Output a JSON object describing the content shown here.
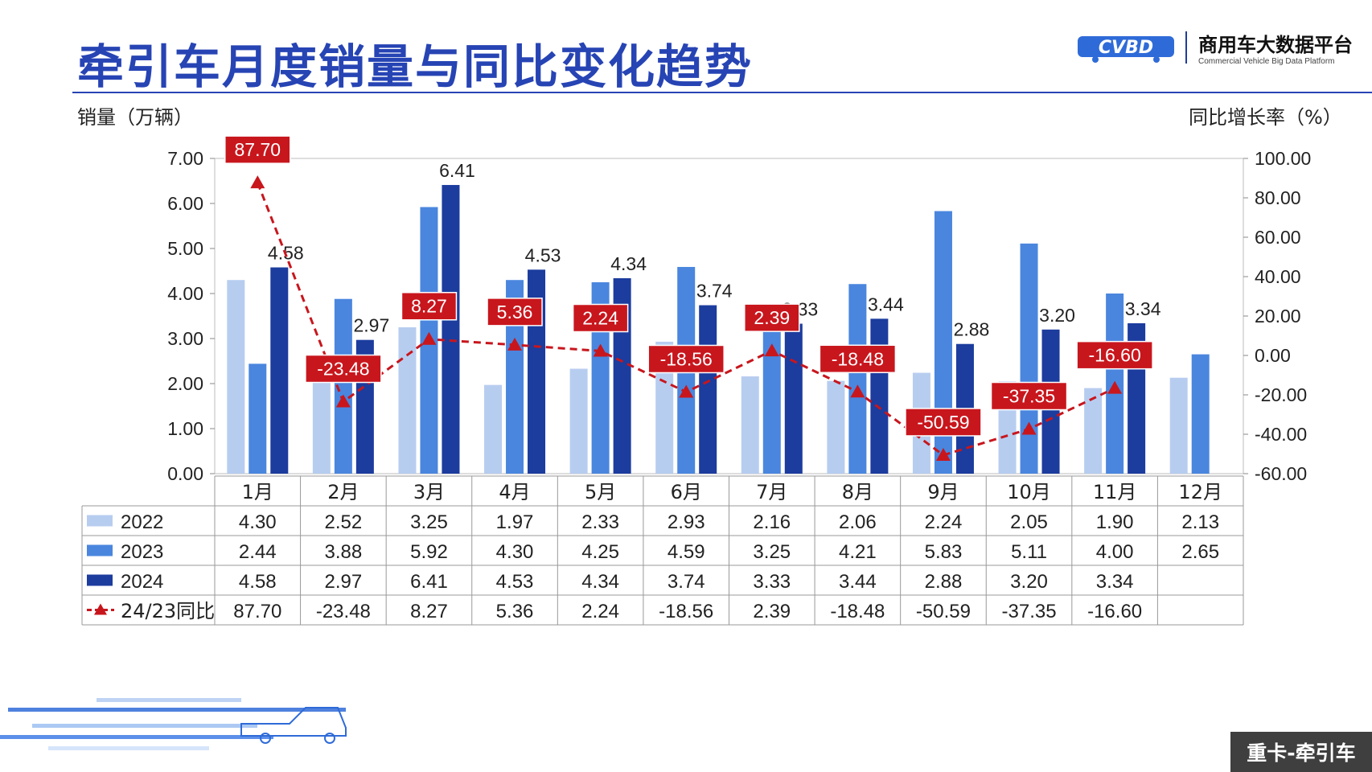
{
  "page": {
    "title": "牵引车月度销量与同比变化趋势",
    "brand_name": "商用车大数据平台",
    "brand_sub": "Commercial Vehicle Big Data Platform",
    "brand_logo": "CVBD",
    "footer_tag": "重卡-牵引车"
  },
  "colors": {
    "c2022": "#b7cdf0",
    "c2023": "#4a86de",
    "c2024": "#1c3c9e",
    "yoy": "#c8161d",
    "title": "#2744b4"
  },
  "chart_data": {
    "type": "bar",
    "ylabel": "销量（万辆）",
    "y2label": "同比增长率（%）",
    "ylim": [
      0,
      7
    ],
    "y2lim": [
      -60,
      100
    ],
    "yticks": [
      "7.00",
      "6.00",
      "5.00",
      "4.00",
      "3.00",
      "2.00",
      "1.00",
      "0.00"
    ],
    "y2ticks": [
      "100.00",
      "80.00",
      "60.00",
      "40.00",
      "20.00",
      "0.00",
      "-20.00",
      "-40.00",
      "-60.00"
    ],
    "categories": [
      "1月",
      "2月",
      "3月",
      "4月",
      "5月",
      "6月",
      "7月",
      "8月",
      "9月",
      "10月",
      "11月",
      "12月"
    ],
    "series": [
      {
        "name": "2022",
        "values": [
          4.3,
          2.52,
          3.25,
          1.97,
          2.33,
          2.93,
          2.16,
          2.06,
          2.24,
          2.05,
          1.9,
          2.13
        ],
        "labels": [
          "4.30",
          "2.52",
          "3.25",
          "1.97",
          "2.33",
          "2.93",
          "2.16",
          "2.06",
          "2.24",
          "2.05",
          "1.90",
          "2.13"
        ]
      },
      {
        "name": "2023",
        "values": [
          2.44,
          3.88,
          5.92,
          4.3,
          4.25,
          4.59,
          3.25,
          4.21,
          5.83,
          5.11,
          4.0,
          2.65
        ],
        "labels": [
          "2.44",
          "3.88",
          "5.92",
          "4.30",
          "4.25",
          "4.59",
          "3.25",
          "4.21",
          "5.83",
          "5.11",
          "4.00",
          "2.65"
        ]
      },
      {
        "name": "2024",
        "values": [
          4.58,
          2.97,
          6.41,
          4.53,
          4.34,
          3.74,
          3.33,
          3.44,
          2.88,
          3.2,
          3.34,
          null
        ],
        "labels": [
          "4.58",
          "2.97",
          "6.41",
          "4.53",
          "4.34",
          "3.74",
          "3.33",
          "3.44",
          "2.88",
          "3.20",
          "3.34",
          ""
        ]
      }
    ],
    "yoy": {
      "name": "24/23同比",
      "values": [
        87.7,
        -23.48,
        8.27,
        5.36,
        2.24,
        -18.56,
        2.39,
        -18.48,
        -50.59,
        -37.35,
        -16.6,
        null
      ],
      "labels": [
        "87.70",
        "-23.48",
        "8.27",
        "5.36",
        "2.24",
        "-18.56",
        "2.39",
        "-18.48",
        "-50.59",
        "-37.35",
        "-16.60",
        ""
      ]
    }
  }
}
